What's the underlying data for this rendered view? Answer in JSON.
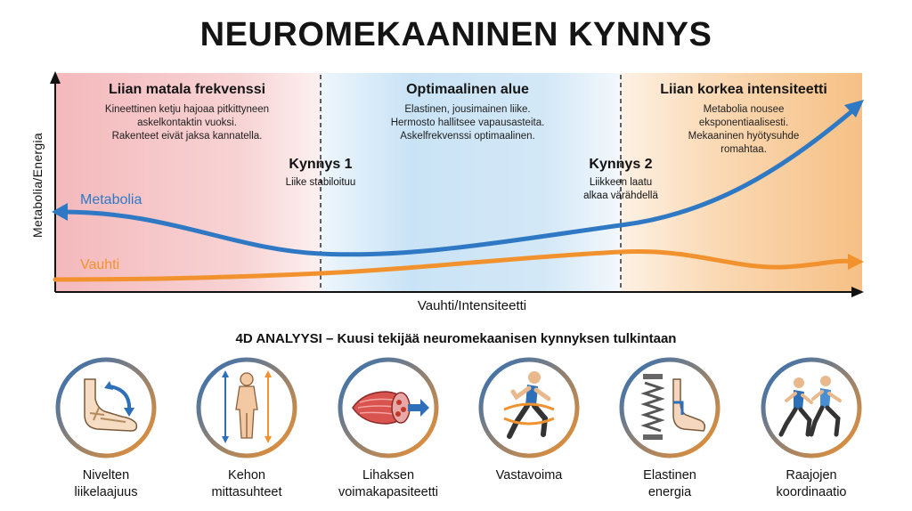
{
  "title": "NEUROMEKAANINEN KYNNYS",
  "axes": {
    "y_label": "Metabolia/Energia",
    "x_label": "Vauhti/Intensiteetti"
  },
  "zones": [
    {
      "title": "Liian matala frekvenssi",
      "lines": [
        "Kineettinen ketju hajoaa pitkittyneen",
        "askelkontaktin vuoksi.",
        "Rakenteet eivät jaksa kannatella."
      ],
      "color": "#f6c7c8"
    },
    {
      "title": "Optimaalinen alue",
      "lines": [
        "Elastinen, jousimainen liike.",
        "Hermosto hallitsee vapausasteita.",
        "Askelfrekvenssi optimaalinen."
      ],
      "color": "#cfe6f6"
    },
    {
      "title": "Liian korkea intensiteetti",
      "lines": [
        "Metabolia nousee",
        "eksponentiaalisesti.",
        "Mekaaninen hyötysuhde",
        "romahtaa."
      ],
      "color": "#f8cf9c"
    }
  ],
  "thresholds": [
    {
      "title": "Kynnys 1",
      "lines": [
        "Liike stabiloituu"
      ]
    },
    {
      "title": "Kynnys 2",
      "lines": [
        "Liikkeen laatu",
        "alkaa värähdellä"
      ]
    }
  ],
  "curves": {
    "metabolia": {
      "label": "Metabolia",
      "color": "#2f78c4"
    },
    "vauhti": {
      "label": "Vauhti",
      "color": "#f2922e"
    }
  },
  "subtitle": "4D ANALYYSI – Kuusi tekijää neuromekaanisen kynnyksen tulkintaan",
  "factors": [
    {
      "label": [
        "Nivelten",
        "liikelaajuus"
      ],
      "icon": "foot-joint-icon"
    },
    {
      "label": [
        "Kehon",
        "mittasuhteet"
      ],
      "icon": "body-proportions-icon"
    },
    {
      "label": [
        "Lihaksen",
        "voimakapasiteetti"
      ],
      "icon": "muscle-icon"
    },
    {
      "label": [
        "Vastavoima"
      ],
      "icon": "runner-icon"
    },
    {
      "label": [
        "Elastinen",
        "energia"
      ],
      "icon": "spring-foot-icon"
    },
    {
      "label": [
        "Raajojen",
        "koordinaatio"
      ],
      "icon": "runners-icon"
    }
  ]
}
